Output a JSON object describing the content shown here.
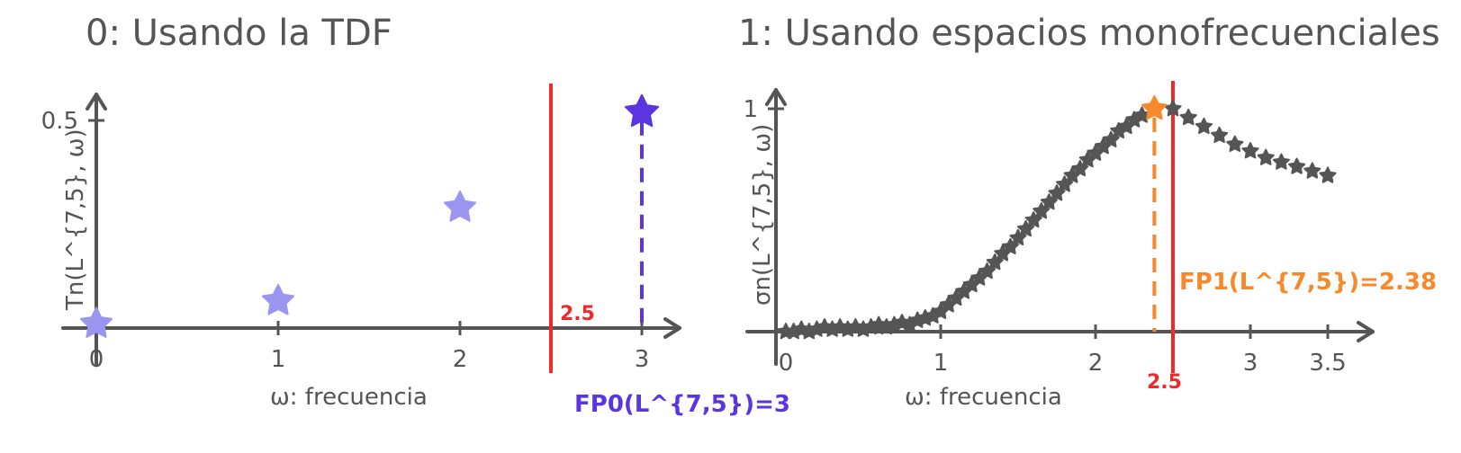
{
  "chart_data": [
    {
      "type": "scatter",
      "title": "0: Usando la TDF",
      "xlabel": "ω: frecuencia",
      "ylabel": "Tn(L^{7,5}, ω)",
      "xticks": [
        "0",
        "1",
        "2",
        "3"
      ],
      "yticks": [
        "0.5"
      ],
      "xlim": [
        0,
        3.2
      ],
      "ylim": [
        0,
        0.55
      ],
      "points": [
        {
          "x": 0,
          "y": 0.01
        },
        {
          "x": 1,
          "y": 0.065
        },
        {
          "x": 2,
          "y": 0.29
        },
        {
          "x": 3,
          "y": 0.52
        }
      ],
      "highlight": {
        "x": 3,
        "y": 0.52
      },
      "threshold": {
        "x": 2.5,
        "label": "2.5"
      },
      "annotation": "FP0(L^{7,5})=3",
      "colors": {
        "points": "#9c95ef",
        "highlight": "#5a35e0",
        "threshold": "#f02a2a",
        "axis": "#555555"
      }
    },
    {
      "type": "scatter",
      "title": "1: Usando espacios monofrecuenciales",
      "xlabel": "ω: frecuencia",
      "ylabel": "σn(L^{7,5}, ω)",
      "xticks": [
        "0",
        "1",
        "2",
        "3",
        "3.5"
      ],
      "yticks": [
        "1"
      ],
      "xlim": [
        0,
        3.65
      ],
      "ylim": [
        0,
        1.1
      ],
      "x": [
        0.0,
        0.05,
        0.1,
        0.15,
        0.2,
        0.25,
        0.3,
        0.35,
        0.4,
        0.45,
        0.5,
        0.55,
        0.6,
        0.65,
        0.7,
        0.75,
        0.8,
        0.85,
        0.9,
        0.95,
        1.0,
        1.05,
        1.1,
        1.15,
        1.2,
        1.25,
        1.3,
        1.35,
        1.4,
        1.45,
        1.5,
        1.55,
        1.6,
        1.65,
        1.7,
        1.75,
        1.8,
        1.85,
        1.9,
        1.95,
        2.0,
        2.05,
        2.1,
        2.15,
        2.2,
        2.25,
        2.3,
        2.38,
        2.5,
        2.6,
        2.7,
        2.8,
        2.9,
        3.0,
        3.1,
        3.2,
        3.3,
        3.4,
        3.5
      ],
      "y": [
        0.0,
        0.0,
        0.01,
        0.0,
        0.01,
        0.02,
        0.01,
        0.02,
        0.01,
        0.02,
        0.01,
        0.02,
        0.03,
        0.02,
        0.03,
        0.04,
        0.03,
        0.05,
        0.06,
        0.07,
        0.09,
        0.12,
        0.15,
        0.18,
        0.21,
        0.24,
        0.27,
        0.31,
        0.35,
        0.38,
        0.42,
        0.46,
        0.5,
        0.54,
        0.58,
        0.62,
        0.66,
        0.7,
        0.73,
        0.77,
        0.8,
        0.83,
        0.86,
        0.9,
        0.92,
        0.95,
        0.97,
        1.0,
        1.0,
        0.96,
        0.92,
        0.88,
        0.84,
        0.81,
        0.78,
        0.76,
        0.74,
        0.72,
        0.7
      ],
      "highlight": {
        "x": 2.38,
        "y": 1.0
      },
      "threshold": {
        "x": 2.5,
        "label": "2.5"
      },
      "annotation": "FP1(L^{7,5})=2.38",
      "colors": {
        "points": "#555555",
        "highlight": "#f5892c",
        "threshold": "#f02a2a",
        "axis": "#555555"
      }
    }
  ]
}
